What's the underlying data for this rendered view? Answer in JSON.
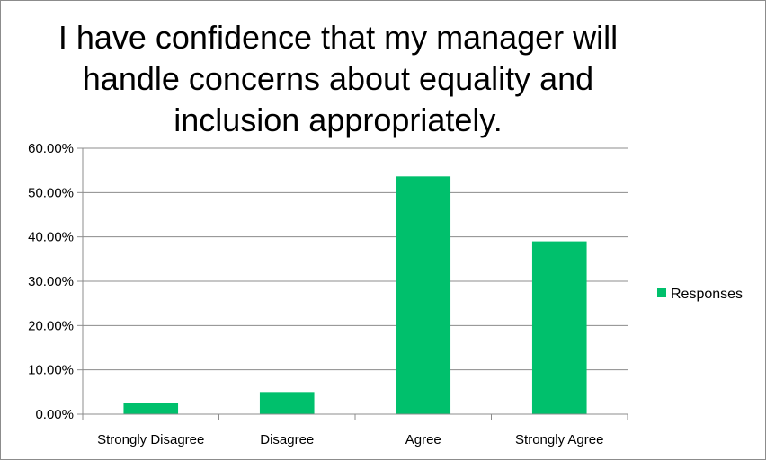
{
  "chart_data": {
    "type": "bar",
    "title": "I have confidence that my manager will handle concerns about equality and inclusion appropriately.",
    "categories": [
      "Strongly Disagree",
      "Disagree",
      "Agree",
      "Strongly Agree"
    ],
    "series": [
      {
        "name": "Responses",
        "values": [
          0.025,
          0.05,
          0.5365,
          0.39
        ],
        "color": "#00c06c"
      }
    ],
    "ylim": [
      0,
      0.6
    ],
    "yticks": [
      0,
      0.1,
      0.2,
      0.3,
      0.4,
      0.5,
      0.6
    ],
    "ytick_labels": [
      "0.00%",
      "10.00%",
      "20.00%",
      "30.00%",
      "40.00%",
      "50.00%",
      "60.00%"
    ],
    "grid": true,
    "legend": "right"
  }
}
